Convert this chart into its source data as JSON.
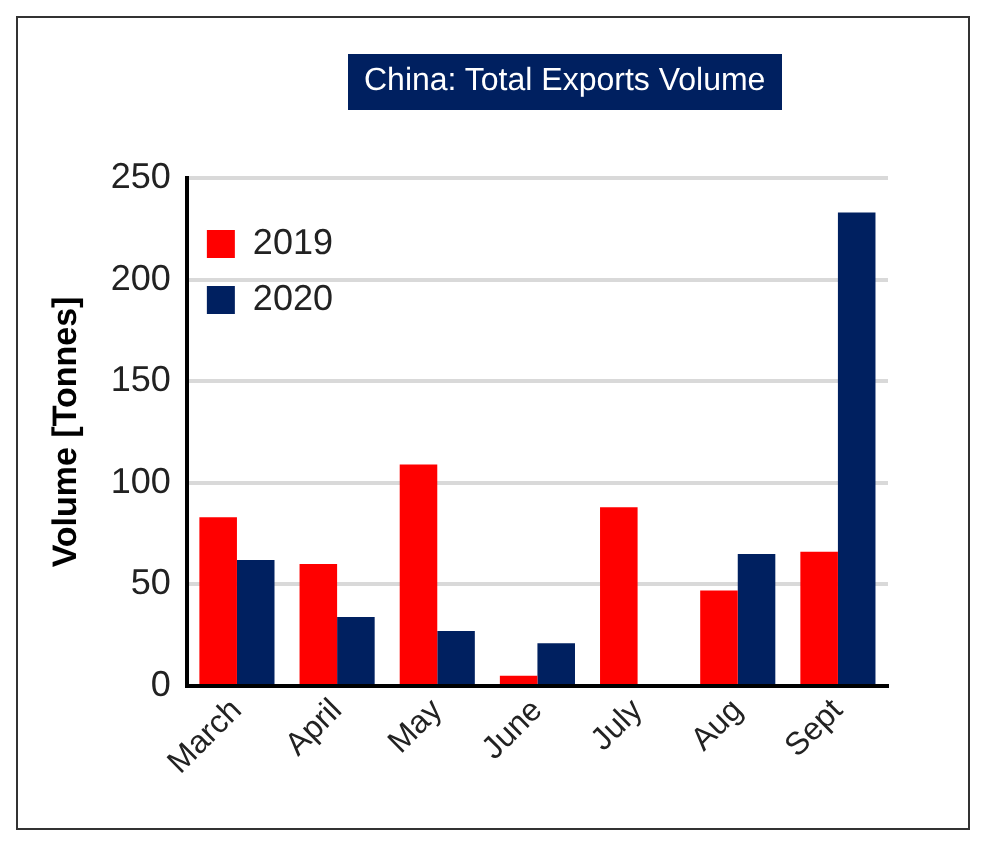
{
  "chart_data": {
    "type": "bar",
    "title": "China: Total Exports Volume",
    "ylabel": "Volume [Tonnes]",
    "categories": [
      "March",
      "April",
      "May",
      "June",
      "July",
      "Aug",
      "Sept"
    ],
    "series": [
      {
        "name": "2019",
        "color": "#ff0000",
        "values": [
          83,
          60,
          109,
          5,
          88,
          47,
          66
        ]
      },
      {
        "name": "2020",
        "color": "#002060",
        "values": [
          62,
          34,
          27,
          21,
          0,
          65,
          233
        ]
      }
    ],
    "ylim": [
      0,
      250
    ],
    "yticks": [
      0,
      50,
      100,
      150,
      200,
      250
    ],
    "grid": "y",
    "legend": "top"
  }
}
